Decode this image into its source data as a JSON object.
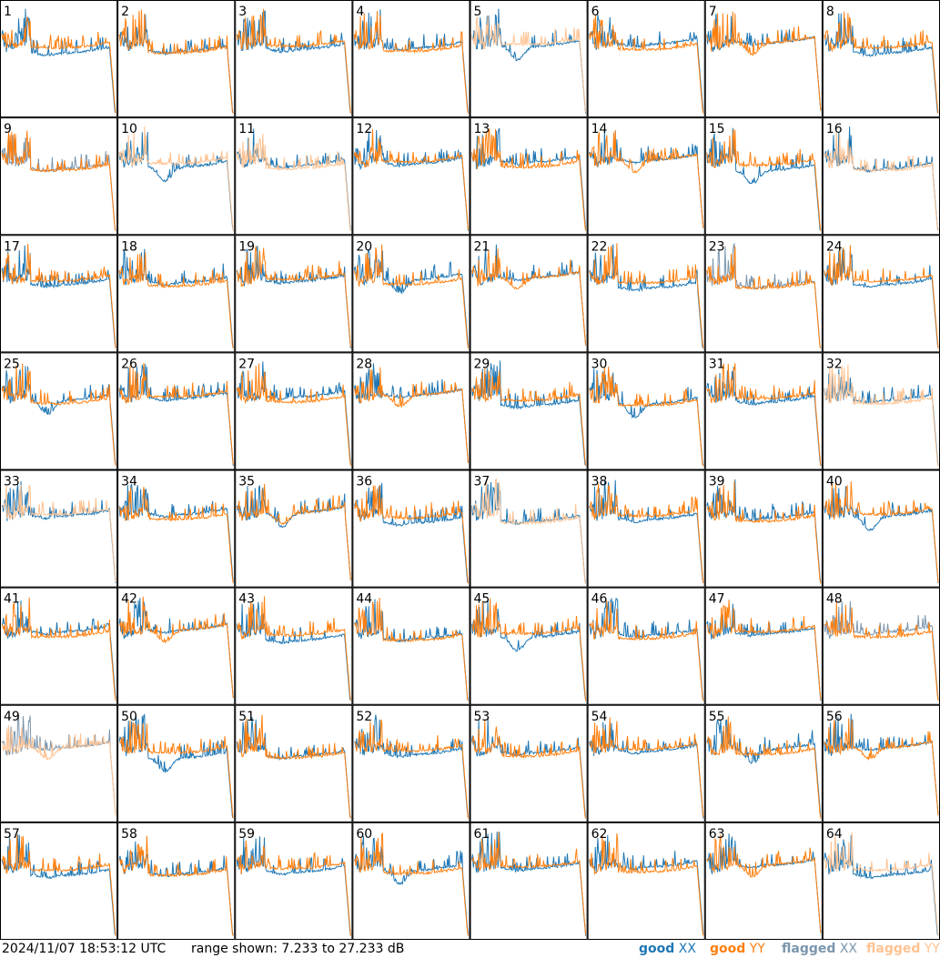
{
  "chart_data": {
    "type": "line",
    "layout": "grid of tile spectra",
    "tiles": [
      "1",
      "2",
      "3",
      "4",
      "5",
      "6",
      "7",
      "8",
      "9",
      "10",
      "11",
      "12",
      "13",
      "14",
      "15",
      "16",
      "17",
      "18",
      "19",
      "20",
      "21",
      "22",
      "23",
      "24",
      "25",
      "26",
      "27",
      "28",
      "29",
      "30",
      "31",
      "32",
      "33",
      "34",
      "35",
      "36",
      "37",
      "38",
      "39",
      "40",
      "41",
      "42",
      "43",
      "44",
      "45",
      "46",
      "47",
      "48",
      "49",
      "50",
      "51",
      "52",
      "53",
      "54",
      "55",
      "56",
      "57",
      "58",
      "59",
      "60",
      "61",
      "62",
      "63",
      "64"
    ],
    "ylim": [
      7.233,
      27.233
    ],
    "grid": false,
    "legend_position": "bottom-right",
    "series": [
      {
        "name": "good XX",
        "color": "#1f77b4"
      },
      {
        "name": "good YY",
        "color": "#ff7f0e"
      },
      {
        "name": "flagged XX",
        "color": "#7b96ad"
      },
      {
        "name": "flagged YY",
        "color": "#ffc291"
      }
    ],
    "flagged": {
      "xx": [
        "9",
        "23",
        "48",
        "49"
      ],
      "yy": [
        "5",
        "10",
        "11",
        "16",
        "32",
        "33",
        "37",
        "49",
        "64"
      ]
    }
  },
  "footer": {
    "timestamp": "2024/11/07 18:53:12 UTC",
    "range_text": "range shown: 7.233 to 27.233 dB",
    "legend": [
      {
        "label": "good",
        "key": "XX",
        "color": "#1f77b4"
      },
      {
        "label": "good",
        "key": "YY",
        "color": "#ff7f0e"
      },
      {
        "label": "flagged",
        "key": "XX",
        "color": "#7b96ad"
      },
      {
        "label": "flagged",
        "key": "YY",
        "color": "#ffc291"
      }
    ]
  }
}
